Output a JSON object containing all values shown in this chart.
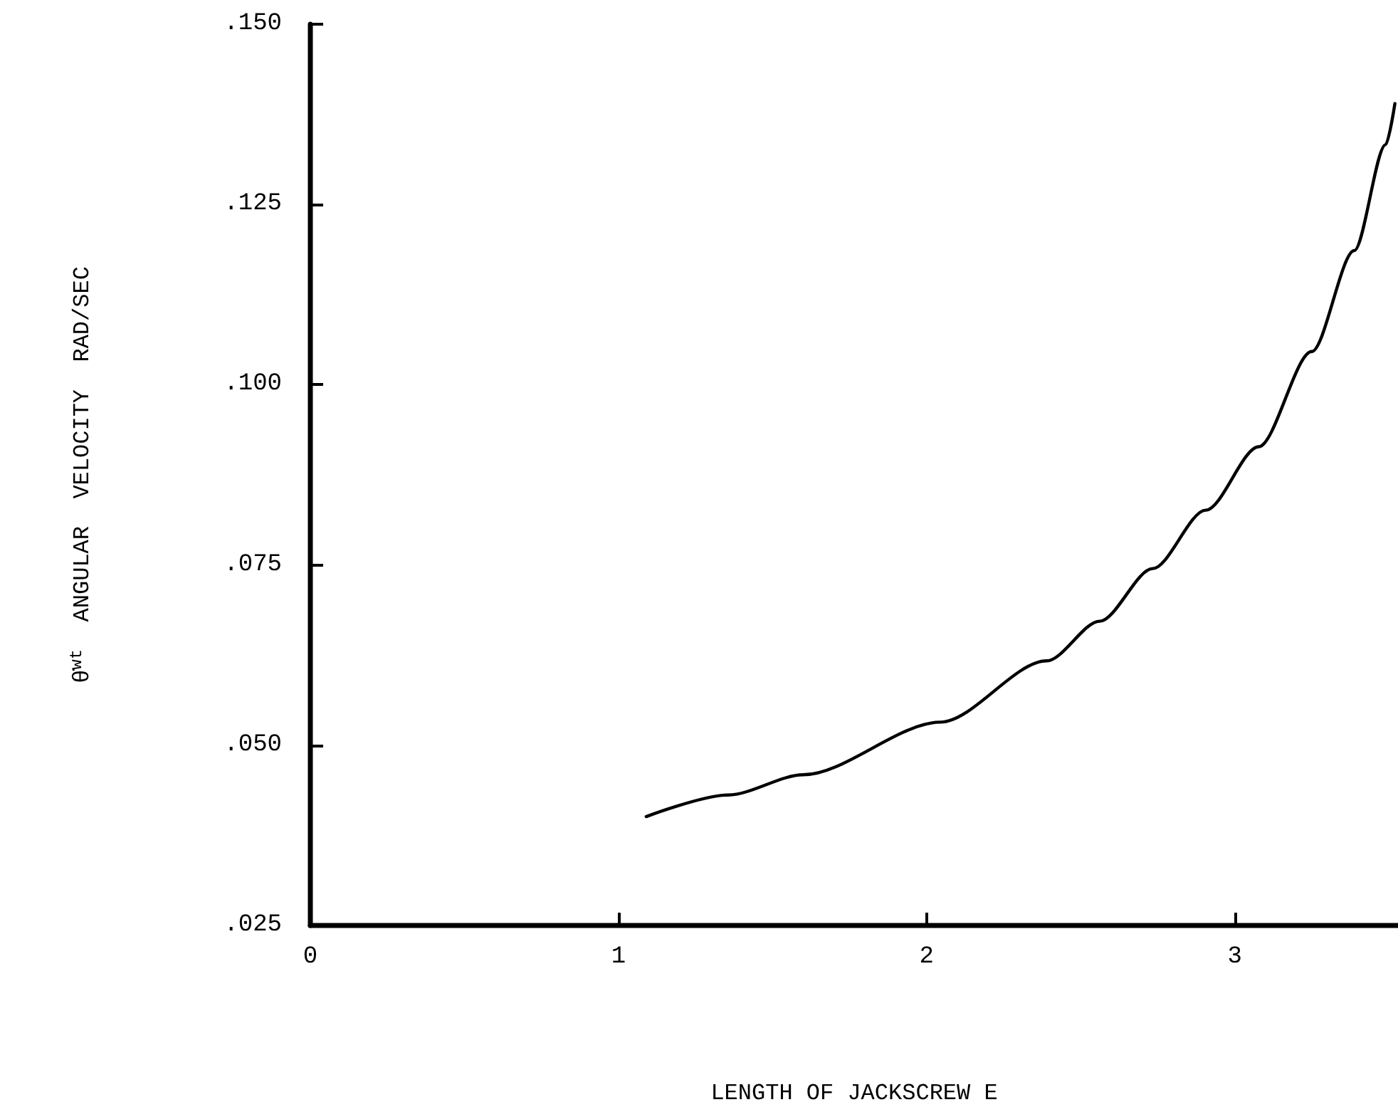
{
  "chart_data": {
    "type": "line",
    "xlabel": "LENGTH OF JACKSCREW E",
    "ylabel": "θ̇$^{wt}$  ANGULAR  VELOCITY  RAD/SEC",
    "x": [
      1.09,
      1.356,
      1.6,
      2.045,
      2.39,
      2.562,
      2.734,
      2.906,
      3.078,
      3.25,
      3.388,
      3.49,
      3.52
    ],
    "series": [
      {
        "color": "#000000",
        "values": [
          0.0401,
          0.0431,
          0.0459,
          0.0532,
          0.0617,
          0.0672,
          0.0745,
          0.0826,
          0.0914,
          0.1046,
          0.1186,
          0.1333,
          0.139
        ]
      }
    ],
    "xlim": [
      0,
      3.53
    ],
    "xticks": [
      0,
      1,
      2,
      3
    ],
    "ylim": [
      0.025,
      0.15
    ],
    "yticks": [
      {
        "value": 0.025,
        "label": ".025"
      },
      {
        "value": 0.05,
        "label": ".050"
      },
      {
        "value": 0.075,
        "label": ".075"
      },
      {
        "value": 0.1,
        "label": ".100"
      },
      {
        "value": 0.125,
        "label": ".125"
      },
      {
        "value": 0.15,
        "label": ".150"
      }
    ],
    "grid": false,
    "marker": "none",
    "line_style": "solid"
  }
}
